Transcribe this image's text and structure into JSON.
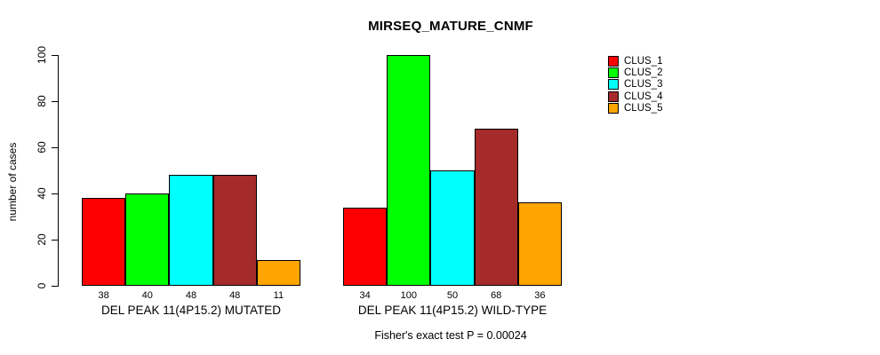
{
  "title": "MIRSEQ_MATURE_CNMF",
  "footer": "Fisher's exact test P = 0.00024",
  "chart_data": {
    "type": "bar",
    "title": "MIRSEQ_MATURE_CNMF",
    "xlabel": "",
    "ylabel": "number of cases",
    "ylim": [
      0,
      100
    ],
    "yticks": [
      0,
      20,
      40,
      60,
      80,
      100
    ],
    "grid": false,
    "legend_position": "top-right",
    "categories": [
      "DEL PEAK 11(4P15.2) MUTATED",
      "DEL PEAK 11(4P15.2) WILD-TYPE"
    ],
    "series": [
      {
        "name": "CLUS_1",
        "color": "#FF0000",
        "values": [
          38,
          34
        ]
      },
      {
        "name": "CLUS_2",
        "color": "#00FF00",
        "values": [
          40,
          100
        ]
      },
      {
        "name": "CLUS_3",
        "color": "#00FFFF",
        "values": [
          48,
          50
        ]
      },
      {
        "name": "CLUS_4",
        "color": "#A52A2A",
        "values": [
          48,
          68
        ]
      },
      {
        "name": "CLUS_5",
        "color": "#FFA500",
        "values": [
          11,
          36
        ]
      }
    ],
    "bar_value_labels": [
      [
        38,
        40,
        48,
        48,
        11
      ],
      [
        34,
        100,
        50,
        68,
        36
      ]
    ],
    "annotation": "Fisher's exact test P = 0.00024",
    "axis_color": "#000000",
    "bar_border_color": "#000000"
  }
}
